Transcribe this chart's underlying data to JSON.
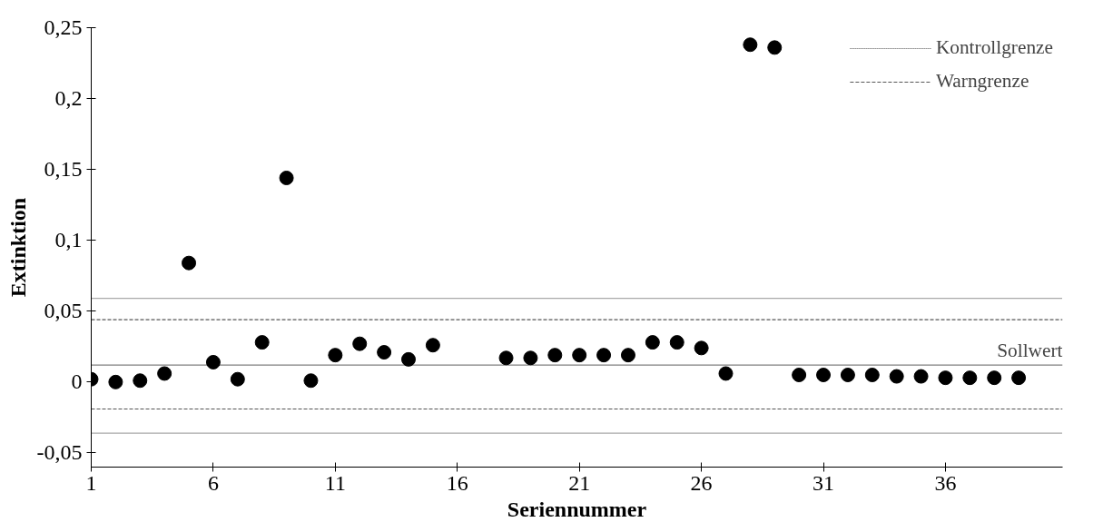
{
  "chart_data": {
    "type": "scatter",
    "xlabel": "Seriennummer",
    "ylabel": "Extinktion",
    "x": [
      1,
      2,
      3,
      4,
      5,
      6,
      7,
      8,
      9,
      10,
      11,
      12,
      13,
      14,
      15,
      18,
      19,
      20,
      21,
      22,
      23,
      24,
      25,
      26,
      27,
      28,
      29,
      30,
      31,
      32,
      33,
      34,
      35,
      36,
      37,
      38,
      39
    ],
    "series": [
      {
        "color": "#000000",
        "values": [
          0.002,
          0,
          0.001,
          0.006,
          0.084,
          0.014,
          0.002,
          0.028,
          0.144,
          0.001,
          0.019,
          0.027,
          0.021,
          0.016,
          0.026,
          0.017,
          0.017,
          0.019,
          0.019,
          0.019,
          0.019,
          0.028,
          0.028,
          0.024,
          0.006,
          0.238,
          0.236,
          0.005,
          0.005,
          0.005,
          0.005,
          0.004,
          0.004,
          0.003,
          0.003,
          0.003,
          0.003
        ]
      }
    ],
    "marker": "circle",
    "grid": false,
    "legend": "top right",
    "xlim": [
      1,
      40.8
    ],
    "xticks": [
      1,
      6,
      11,
      16,
      21,
      26,
      31,
      36
    ],
    "ylim": [
      -0.06,
      0.25
    ],
    "yticks": [
      {
        "value": -0.05,
        "label": "-0,05"
      },
      {
        "value": 0,
        "label": "0"
      },
      {
        "value": 0.05,
        "label": "0,05"
      },
      {
        "value": 0.1,
        "label": "0,1"
      },
      {
        "value": 0.15,
        "label": "0,15"
      },
      {
        "value": 0.2,
        "label": "0,2"
      },
      {
        "value": 0.25,
        "label": "0,25"
      }
    ],
    "ref_lines": [
      {
        "axis": "y",
        "value": 0.059,
        "label": "Kontrollgrenze",
        "line_style": "dotted",
        "color": "#555555"
      },
      {
        "axis": "y",
        "value": 0.044,
        "label": "Warngrenze",
        "line_style": "dashed",
        "color": "#555555"
      },
      {
        "axis": "y",
        "value": 0.012,
        "label": "Sollwert",
        "line_style": "solid",
        "color": "#808080"
      },
      {
        "axis": "y",
        "value": -0.019,
        "label": null,
        "line_style": "dashed",
        "color": "#555555"
      },
      {
        "axis": "y",
        "value": -0.036,
        "label": null,
        "line_style": "dotted",
        "color": "#555555"
      }
    ]
  }
}
